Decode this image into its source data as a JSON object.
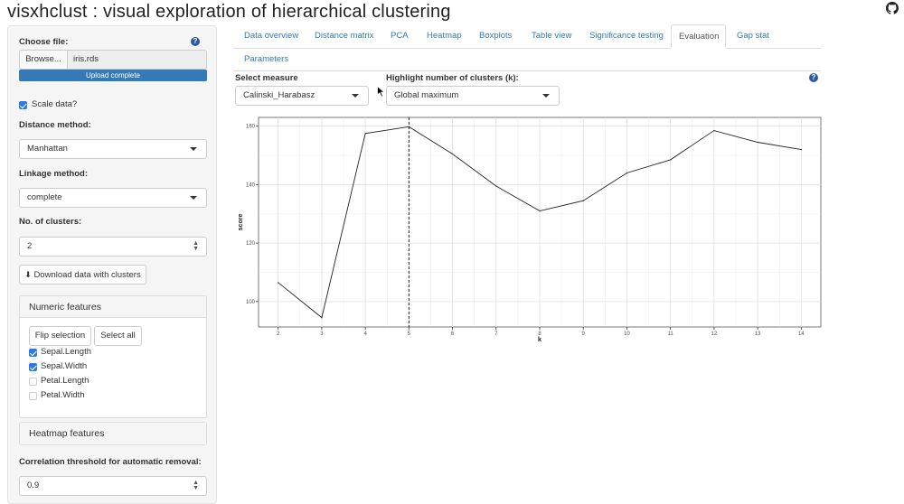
{
  "app": {
    "title": "visxhclust : visual exploration of hierarchical clustering"
  },
  "sidebar": {
    "choose_file_label": "Choose file:",
    "browse_label": "Browse...",
    "file_name": "iris.rds",
    "upload_status": "Upload complete",
    "upload_progress": 1.0,
    "scale_label": "Scale data?",
    "scale_checked": true,
    "distance_label": "Distance method:",
    "distance_value": "Manhattan",
    "linkage_label": "Linkage method:",
    "linkage_value": "complete",
    "clusters_label": "No. of clusters:",
    "clusters_value": "2",
    "download_label": "Download data with clusters",
    "numeric_panel_title": "Numeric features",
    "flip_label": "Flip selection",
    "select_all_label": "Select all",
    "features": [
      {
        "label": "Sepal.Length",
        "checked": true
      },
      {
        "label": "Sepal.Width",
        "checked": true
      },
      {
        "label": "Petal.Length",
        "checked": false
      },
      {
        "label": "Petal.Width",
        "checked": false
      }
    ],
    "heatmap_panel_title": "Heatmap features",
    "corr_label": "Correlation threshold for automatic removal:",
    "corr_value": "0.9"
  },
  "tabs": [
    {
      "label": "Data overview",
      "active": false
    },
    {
      "label": "Distance matrix",
      "active": false
    },
    {
      "label": "PCA",
      "active": false
    },
    {
      "label": "Heatmap",
      "active": false
    },
    {
      "label": "Boxplots",
      "active": false
    },
    {
      "label": "Table view",
      "active": false
    },
    {
      "label": "Significance testing",
      "active": false
    },
    {
      "label": "Evaluation",
      "active": true
    },
    {
      "label": "Gap stat",
      "active": false
    },
    {
      "label": "Parameters",
      "active": false
    }
  ],
  "evaluation": {
    "measure_label": "Select measure",
    "measure_value": "Calinski_Harabasz",
    "highlight_label": "Highlight number of clusters (k):",
    "highlight_value": "Global maximum"
  },
  "colors": {
    "accent": "#337ab7",
    "checkbox": "#2c7be5",
    "panel_bg": "#f5f5f5",
    "plot_line": "#222222"
  },
  "chart_data": {
    "type": "line",
    "xlabel": "k",
    "ylabel": "score",
    "x": [
      2,
      3,
      4,
      5,
      6,
      7,
      8,
      9,
      10,
      11,
      12,
      13,
      14
    ],
    "y": [
      106.5,
      94.5,
      157.5,
      159.8,
      150.5,
      139.5,
      131.0,
      134.5,
      144.0,
      148.5,
      158.5,
      154.5,
      152.0
    ],
    "highlight_k": 5,
    "xticks": [
      2,
      3,
      4,
      5,
      6,
      7,
      8,
      9,
      10,
      11,
      12,
      13,
      14
    ],
    "yticks": [
      100,
      120,
      140,
      160
    ],
    "xlim": [
      1.55,
      14.45
    ],
    "ylim": [
      91.3,
      163.0
    ],
    "grid": true
  }
}
